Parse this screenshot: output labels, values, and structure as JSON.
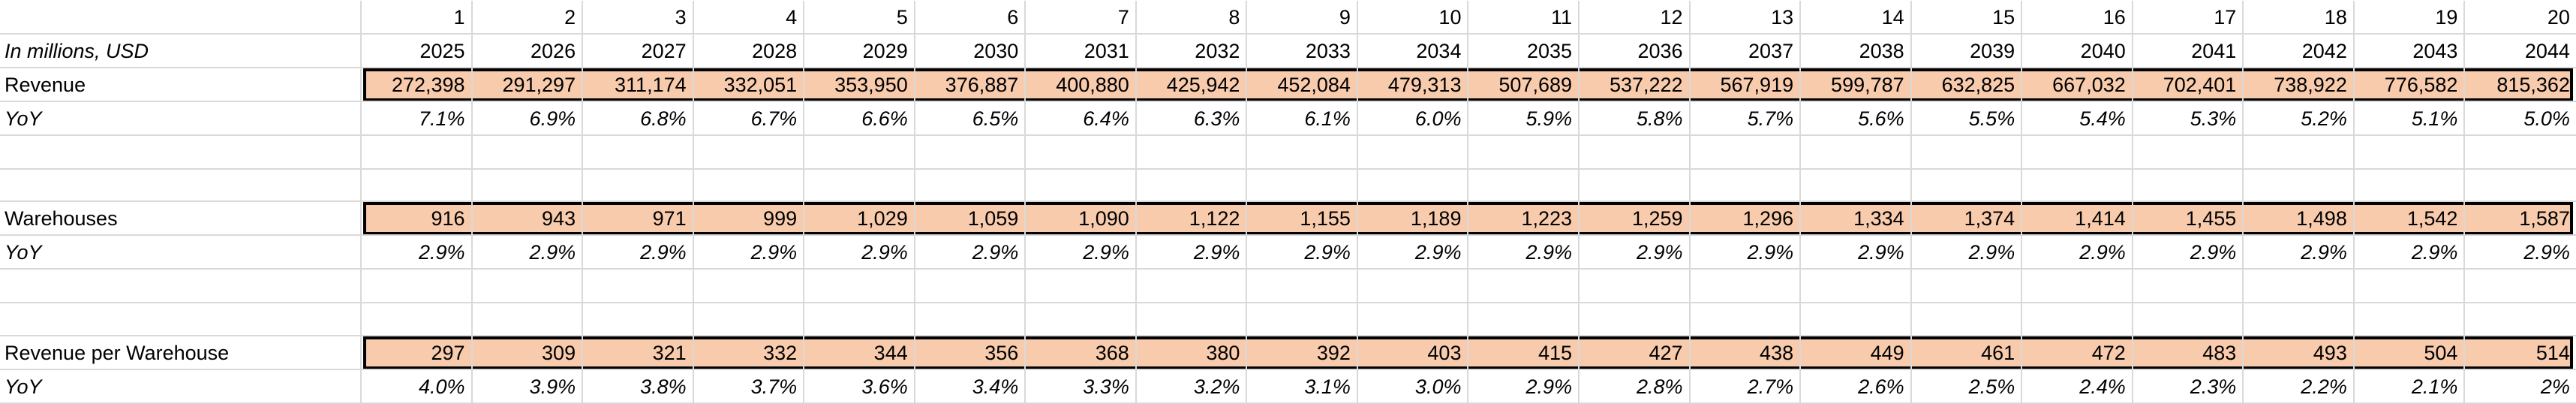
{
  "sheet": {
    "indexes": [
      "1",
      "2",
      "3",
      "4",
      "5",
      "6",
      "7",
      "8",
      "9",
      "10",
      "11",
      "12",
      "13",
      "14",
      "15",
      "16",
      "17",
      "18",
      "19",
      "20"
    ],
    "units_label": "In millions, USD",
    "years": [
      "2025",
      "2026",
      "2027",
      "2028",
      "2029",
      "2030",
      "2031",
      "2032",
      "2033",
      "2034",
      "2035",
      "2036",
      "2037",
      "2038",
      "2039",
      "2040",
      "2041",
      "2042",
      "2043",
      "2044"
    ],
    "revenue": {
      "label": "Revenue",
      "values": [
        "272,398",
        "291,297",
        "311,174",
        "332,051",
        "353,950",
        "376,887",
        "400,880",
        "425,942",
        "452,084",
        "479,313",
        "507,689",
        "537,222",
        "567,919",
        "599,787",
        "632,825",
        "667,032",
        "702,401",
        "738,922",
        "776,582",
        "815,362"
      ]
    },
    "revenue_yoy": {
      "label": "YoY",
      "values": [
        "7.1%",
        "6.9%",
        "6.8%",
        "6.7%",
        "6.6%",
        "6.5%",
        "6.4%",
        "6.3%",
        "6.1%",
        "6.0%",
        "5.9%",
        "5.8%",
        "5.7%",
        "5.6%",
        "5.5%",
        "5.4%",
        "5.3%",
        "5.2%",
        "5.1%",
        "5.0%"
      ]
    },
    "warehouses": {
      "label": "Warehouses",
      "values": [
        "916",
        "943",
        "971",
        "999",
        "1,029",
        "1,059",
        "1,090",
        "1,122",
        "1,155",
        "1,189",
        "1,223",
        "1,259",
        "1,296",
        "1,334",
        "1,374",
        "1,414",
        "1,455",
        "1,498",
        "1,542",
        "1,587"
      ]
    },
    "warehouses_yoy": {
      "label": "YoY",
      "values": [
        "2.9%",
        "2.9%",
        "2.9%",
        "2.9%",
        "2.9%",
        "2.9%",
        "2.9%",
        "2.9%",
        "2.9%",
        "2.9%",
        "2.9%",
        "2.9%",
        "2.9%",
        "2.9%",
        "2.9%",
        "2.9%",
        "2.9%",
        "2.9%",
        "2.9%",
        "2.9%"
      ]
    },
    "revenue_per_warehouse": {
      "label": "Revenue per Warehouse",
      "values": [
        "297",
        "309",
        "321",
        "332",
        "344",
        "356",
        "368",
        "380",
        "392",
        "403",
        "415",
        "427",
        "438",
        "449",
        "461",
        "472",
        "483",
        "493",
        "504",
        "514"
      ]
    },
    "rpw_yoy": {
      "label": "YoY",
      "values": [
        "4.0%",
        "3.9%",
        "3.8%",
        "3.7%",
        "3.6%",
        "3.4%",
        "3.3%",
        "3.2%",
        "3.1%",
        "3.0%",
        "2.9%",
        "2.8%",
        "2.7%",
        "2.6%",
        "2.5%",
        "2.4%",
        "2.3%",
        "2.2%",
        "2.1%",
        "2%"
      ]
    },
    "colors": {
      "highlight_fill": "#f8cbad",
      "highlight_border": "#000000",
      "gridline": "#d9d9d9"
    }
  }
}
